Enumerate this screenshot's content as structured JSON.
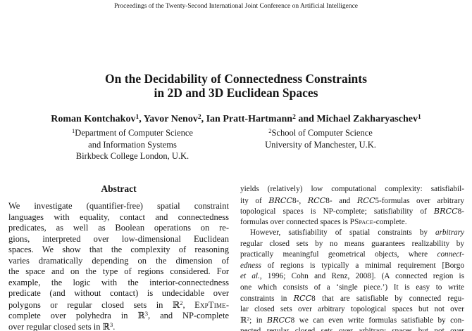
{
  "colors": {
    "background": "#ffffff",
    "text": "#161616"
  },
  "header": {
    "proceedings": "Proceedings of the Twenty-Second International Joint Conference on Artificial Intelligence"
  },
  "title": {
    "line1": "On the Decidability of Connectedness Constraints",
    "line2": "in 2D and 3D Euclidean Spaces"
  },
  "authors": {
    "runs": [
      {
        "t": "Roman Kontchakov"
      },
      {
        "t": "1",
        "s": "sup"
      },
      {
        "t": ", Yavor Nenov"
      },
      {
        "t": "2",
        "s": "sup"
      },
      {
        "t": ", Ian Pratt-Hartmann"
      },
      {
        "t": "2",
        "s": "sup"
      },
      {
        "t": " and Michael Zakharyaschev"
      },
      {
        "t": "1",
        "s": "sup"
      }
    ]
  },
  "affiliations": {
    "first": {
      "lines": [
        [
          {
            "t": "1",
            "s": "sup"
          },
          {
            "t": "Department of Computer Science"
          }
        ],
        [
          {
            "t": "and Information Systems"
          }
        ],
        [
          {
            "t": "Birkbeck College London, U.K."
          }
        ]
      ]
    },
    "second": {
      "lines": [
        [
          {
            "t": "2",
            "s": "sup"
          },
          {
            "t": "School of Computer Science"
          }
        ],
        [
          {
            "t": "University of Manchester, U.K."
          }
        ]
      ]
    }
  },
  "abstract": {
    "heading": "Abstract",
    "body": {
      "complete_end": true,
      "indent_first": false,
      "lines": [
        [
          {
            "t": "We investigate (quantifier-free) spatial constraint"
          }
        ],
        [
          {
            "t": "languages with equality, contact and connectedness"
          }
        ],
        [
          {
            "t": "predicates, as well as Boolean operations on re-"
          }
        ],
        [
          {
            "t": "gions, interpreted over low-dimensional Euclidean"
          }
        ],
        [
          {
            "t": "spaces. We show that the complexity of reasoning"
          }
        ],
        [
          {
            "t": "varies dramatically depending on the dimension of"
          }
        ],
        [
          {
            "t": "the space and on the type of regions considered. For"
          }
        ],
        [
          {
            "t": "example, the logic with the interior-connectedness"
          }
        ],
        [
          {
            "t": "predicate (and without contact) is undecidable over"
          }
        ],
        [
          {
            "t": "polygons or regular closed sets in "
          },
          {
            "t": "ℝ",
            "s": "bb"
          },
          {
            "t": "2",
            "s": "sup"
          },
          {
            "t": ", "
          },
          {
            "t": "ExpTime",
            "s": "sc"
          },
          {
            "t": "-"
          }
        ],
        [
          {
            "t": "complete over polyhedra in "
          },
          {
            "t": "ℝ",
            "s": "bb"
          },
          {
            "t": "3",
            "s": "sup"
          },
          {
            "t": ", and NP-complete"
          }
        ],
        [
          {
            "t": "over regular closed sets in "
          },
          {
            "t": "ℝ",
            "s": "bb"
          },
          {
            "t": "3",
            "s": "sup"
          },
          {
            "t": "."
          }
        ]
      ]
    }
  },
  "right_column": {
    "para1": {
      "complete_end": true,
      "indent_first": false,
      "lines": [
        [
          {
            "t": "yields (relatively) low computational complexity: satisfiabil-"
          }
        ],
        [
          {
            "t": "ity of "
          },
          {
            "t": "BRCC",
            "s": "cal"
          },
          {
            "t": "8-, "
          },
          {
            "t": "RCC",
            "s": "cal"
          },
          {
            "t": "8- and "
          },
          {
            "t": "RCC",
            "s": "cal"
          },
          {
            "t": "5-formulas over arbitrary"
          }
        ],
        [
          {
            "t": "topological spaces is NP-complete; satisfiability of "
          },
          {
            "t": "BRCC",
            "s": "cal"
          },
          {
            "t": "8-"
          }
        ],
        [
          {
            "t": "formulas over connected spaces is "
          },
          {
            "t": "PSpace",
            "s": "sc"
          },
          {
            "t": "-complete."
          }
        ]
      ]
    },
    "para2": {
      "complete_end": false,
      "indent_first": true,
      "lines": [
        [
          {
            "t": "However, satisfiability of spatial constraints by "
          },
          {
            "t": "arbitrary",
            "s": "i"
          }
        ],
        [
          {
            "t": "regular closed sets by no means guarantees realizability by"
          }
        ],
        [
          {
            "t": "practically meaningful geometrical objects, where "
          },
          {
            "t": "connect-",
            "s": "i"
          }
        ],
        [
          {
            "t": "edness",
            "s": "i"
          },
          {
            "t": " of regions is typically a minimal requirement [Borgo"
          }
        ],
        [
          {
            "t": "et al.",
            "s": "i"
          },
          {
            "t": ", 1996; Cohn and Renz, 2008]. (A connected region is"
          }
        ],
        [
          {
            "t": "one which consists of a ‘single piece.’) It is easy to write"
          }
        ],
        [
          {
            "t": "constraints in "
          },
          {
            "t": "RCC",
            "s": "cal"
          },
          {
            "t": "8 that are satisfiable by connected regu-"
          }
        ],
        [
          {
            "t": "lar closed sets over arbitrary topological spaces but not over"
          }
        ],
        [
          {
            "t": "ℝ",
            "s": "bb"
          },
          {
            "t": "2",
            "s": "sup"
          },
          {
            "t": "; in "
          },
          {
            "t": "BRCC",
            "s": "cal"
          },
          {
            "t": "8 we can even write formulas satisfiable by con-"
          }
        ],
        [
          {
            "t": "nected regular closed sets over arbitrary spaces but not over"
          }
        ]
      ]
    }
  }
}
